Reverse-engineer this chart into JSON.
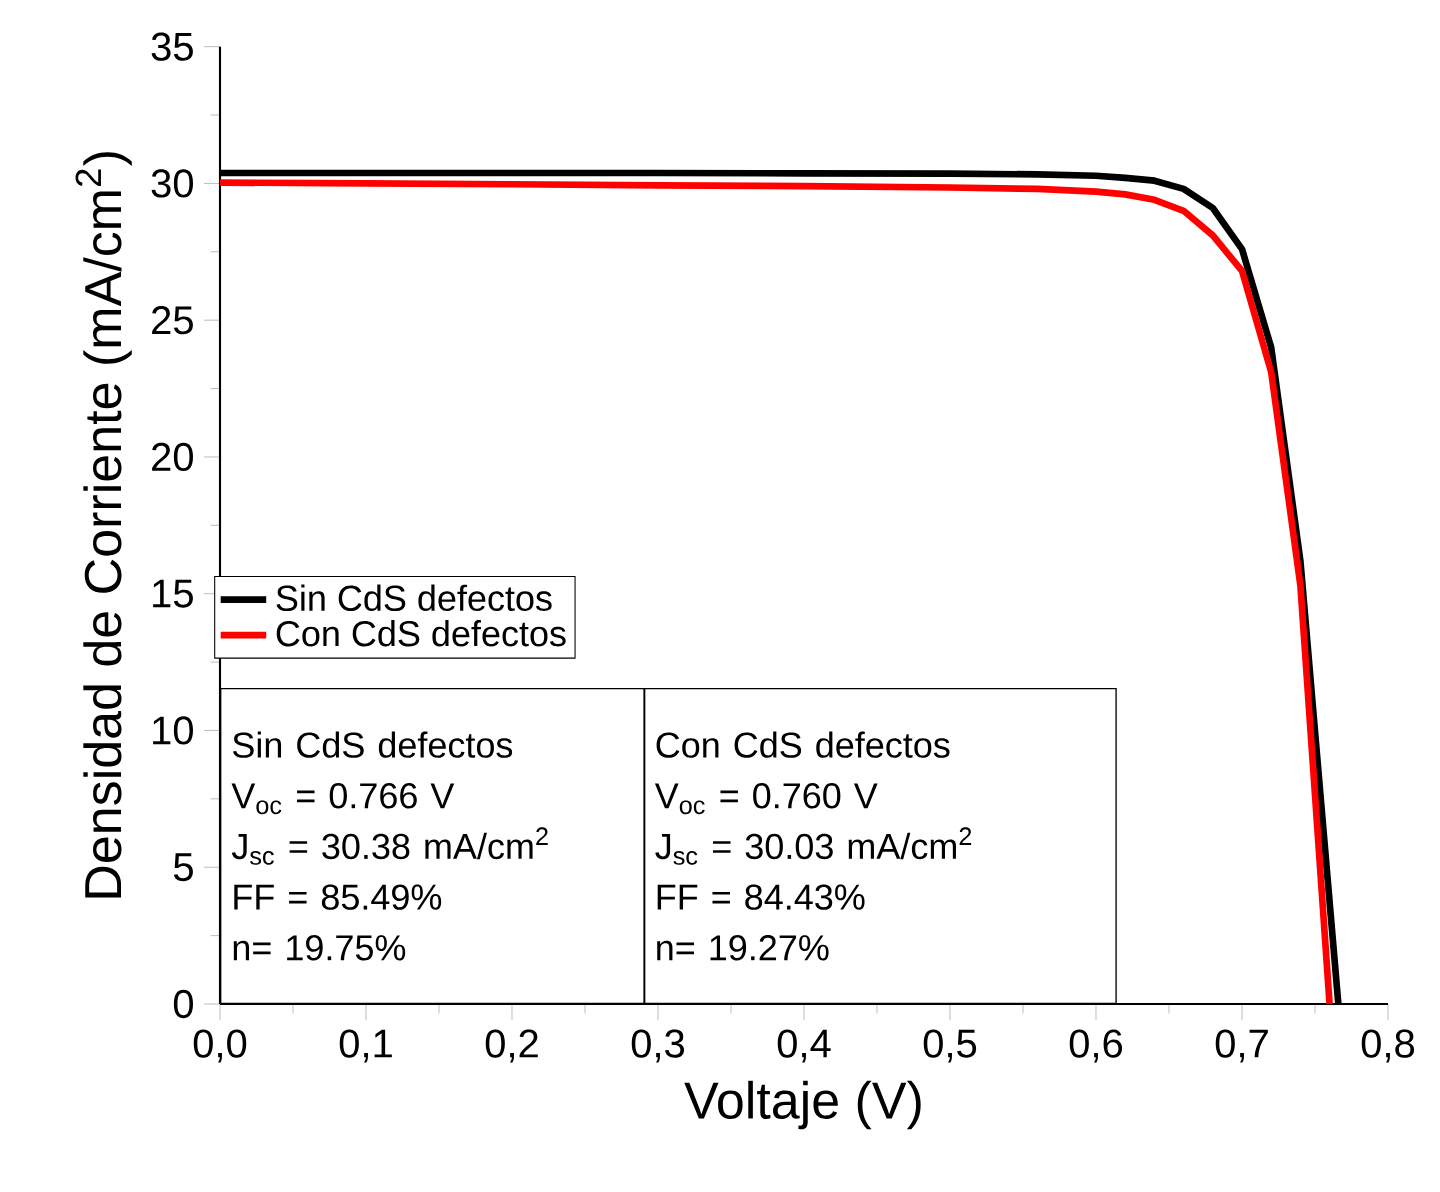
{
  "chart_data": {
    "type": "line",
    "xlabel": "Voltaje (V)",
    "ylabel": "Densidad de Corriente (mA/cm$^{2}$)",
    "xlim": [
      0,
      0.8
    ],
    "ylim": [
      0,
      35
    ],
    "xticks": [
      {
        "value": 0,
        "label": "0,0"
      },
      {
        "value": 0.1,
        "label": "0,1"
      },
      {
        "value": 0.2,
        "label": "0,2"
      },
      {
        "value": 0.3,
        "label": "0,3"
      },
      {
        "value": 0.4,
        "label": "0,4"
      },
      {
        "value": 0.5,
        "label": "0,5"
      },
      {
        "value": 0.6,
        "label": "0,6"
      },
      {
        "value": 0.7,
        "label": "0,7"
      },
      {
        "value": 0.8,
        "label": "0,8"
      }
    ],
    "yticks": [
      0,
      5,
      10,
      15,
      20,
      25,
      30,
      35
    ],
    "legend": "left",
    "marker": "none",
    "line_style": "solid",
    "grid": false,
    "series": [
      {
        "name": "Sin CdS defectos",
        "color": "#000000",
        "x": [
          0,
          0.1,
          0.2,
          0.3,
          0.4,
          0.5,
          0.56,
          0.6,
          0.62,
          0.64,
          0.66,
          0.68,
          0.7,
          0.72,
          0.74,
          0.766
        ],
        "values": [
          30.38,
          30.38,
          30.38,
          30.38,
          30.37,
          30.36,
          30.33,
          30.28,
          30.2,
          30.1,
          29.8,
          29.1,
          27.6,
          24.0,
          16.2,
          0
        ]
      },
      {
        "name": "Con CdS defectos",
        "color": "#ff0000",
        "x": [
          0,
          0.1,
          0.2,
          0.3,
          0.4,
          0.5,
          0.56,
          0.6,
          0.62,
          0.64,
          0.66,
          0.68,
          0.7,
          0.72,
          0.74,
          0.76
        ],
        "values": [
          30.03,
          30.0,
          29.97,
          29.93,
          29.9,
          29.85,
          29.8,
          29.7,
          29.6,
          29.4,
          29.0,
          28.1,
          26.8,
          23.1,
          15.3,
          0
        ]
      }
    ],
    "annotations": [
      "Sin CdS defectos",
      "V$_{oc}$ = 0.766 V",
      "J$_{sc}$ = 30.38 mA/cm$^{2}$",
      "FF = 85.49%",
      "n= 19.75%",
      "Con CdS defectos",
      "V$_{oc}$ = 0.760 V",
      "J$_{sc}$ = 30.03 mA/cm$^{2}$",
      "FF = 84.43%",
      "n= 19.27%"
    ]
  }
}
